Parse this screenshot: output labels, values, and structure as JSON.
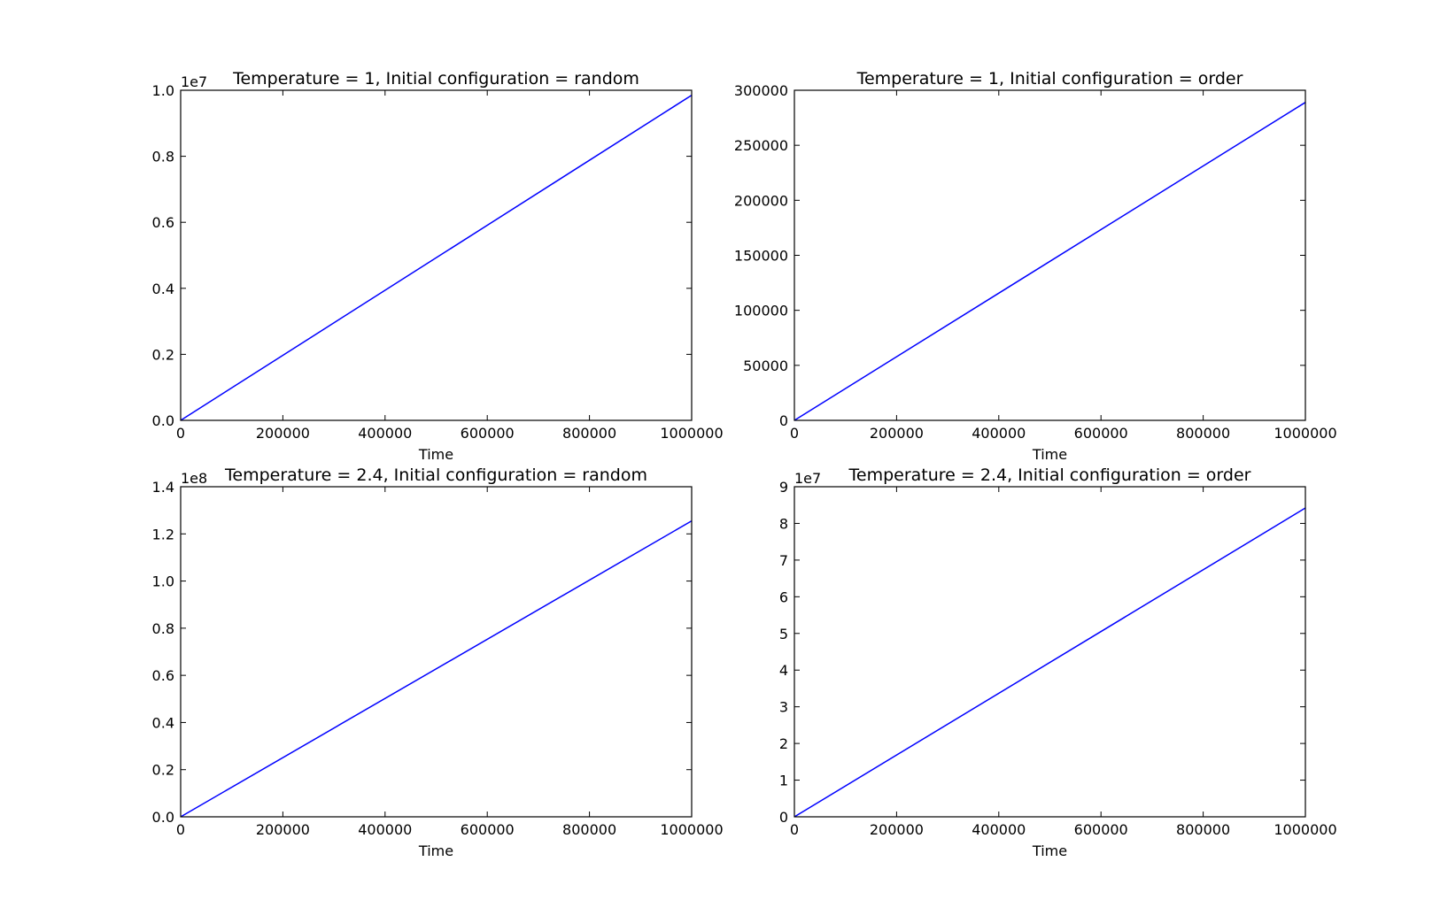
{
  "chart_data": [
    {
      "type": "line",
      "title": "Temperature = 1, Initial configuration = random",
      "xlabel": "Time",
      "ylabel": "",
      "xlim": [
        0,
        1000000
      ],
      "ylim": [
        0,
        1.0
      ],
      "y_offset_label": "1e7",
      "xticks": [
        0,
        200000,
        400000,
        600000,
        800000,
        1000000
      ],
      "xtick_labels": [
        "0",
        "200000",
        "400000",
        "600000",
        "800000",
        "1000000"
      ],
      "yticks": [
        0,
        0.2,
        0.4,
        0.6,
        0.8,
        1.0
      ],
      "ytick_labels": [
        "0.0",
        "0.2",
        "0.4",
        "0.6",
        "0.8",
        "1.0"
      ],
      "grid": false,
      "series": [
        {
          "x": [
            0,
            1000000
          ],
          "values": [
            0,
            0.985
          ],
          "color": "#0000ff"
        }
      ]
    },
    {
      "type": "line",
      "title": "Temperature = 1, Initial configuration = order",
      "xlabel": "Time",
      "ylabel": "",
      "xlim": [
        0,
        1000000
      ],
      "ylim": [
        0,
        300000
      ],
      "y_offset_label": "",
      "xticks": [
        0,
        200000,
        400000,
        600000,
        800000,
        1000000
      ],
      "xtick_labels": [
        "0",
        "200000",
        "400000",
        "600000",
        "800000",
        "1000000"
      ],
      "yticks": [
        0,
        50000,
        100000,
        150000,
        200000,
        250000,
        300000
      ],
      "ytick_labels": [
        "0",
        "50000",
        "100000",
        "150000",
        "200000",
        "250000",
        "300000"
      ],
      "grid": false,
      "series": [
        {
          "x": [
            0,
            1000000
          ],
          "values": [
            0,
            289000
          ],
          "color": "#0000ff"
        }
      ]
    },
    {
      "type": "line",
      "title": "Temperature = 2.4, Initial configuration = random",
      "xlabel": "Time",
      "ylabel": "",
      "xlim": [
        0,
        1000000
      ],
      "ylim": [
        0,
        1.4
      ],
      "y_offset_label": "1e8",
      "xticks": [
        0,
        200000,
        400000,
        600000,
        800000,
        1000000
      ],
      "xtick_labels": [
        "0",
        "200000",
        "400000",
        "600000",
        "800000",
        "1000000"
      ],
      "yticks": [
        0,
        0.2,
        0.4,
        0.6,
        0.8,
        1.0,
        1.2,
        1.4
      ],
      "ytick_labels": [
        "0.0",
        "0.2",
        "0.4",
        "0.6",
        "0.8",
        "1.0",
        "1.2",
        "1.4"
      ],
      "grid": false,
      "series": [
        {
          "x": [
            0,
            1000000
          ],
          "values": [
            0,
            1.255
          ],
          "color": "#0000ff"
        }
      ]
    },
    {
      "type": "line",
      "title": "Temperature = 2.4, Initial configuration = order",
      "xlabel": "Time",
      "ylabel": "",
      "xlim": [
        0,
        1000000
      ],
      "ylim": [
        0,
        9
      ],
      "y_offset_label": "1e7",
      "xticks": [
        0,
        200000,
        400000,
        600000,
        800000,
        1000000
      ],
      "xtick_labels": [
        "0",
        "200000",
        "400000",
        "600000",
        "800000",
        "1000000"
      ],
      "yticks": [
        0,
        1,
        2,
        3,
        4,
        5,
        6,
        7,
        8,
        9
      ],
      "ytick_labels": [
        "0",
        "1",
        "2",
        "3",
        "4",
        "5",
        "6",
        "7",
        "8",
        "9"
      ],
      "grid": false,
      "series": [
        {
          "x": [
            0,
            1000000
          ],
          "values": [
            0,
            8.42
          ],
          "color": "#0000ff"
        }
      ]
    }
  ]
}
